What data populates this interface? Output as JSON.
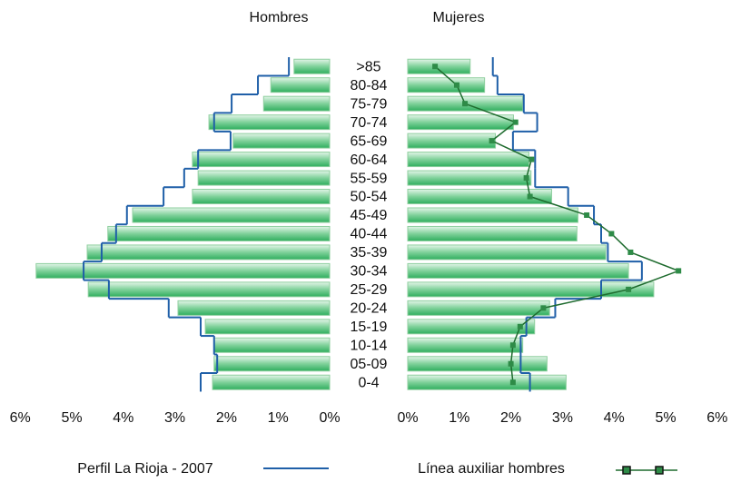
{
  "chart_data": {
    "type": "population_pyramid",
    "categories": [
      ">85",
      "80-84",
      "75-79",
      "70-74",
      "65-69",
      "60-64",
      "55-59",
      "50-54",
      "45-49",
      "40-44",
      "35-39",
      "30-34",
      "25-29",
      "20-24",
      "15-19",
      "10-14",
      "05-09",
      "0-4"
    ],
    "series": [
      {
        "name": "Hombres",
        "side": "left",
        "color": "#3cb371",
        "values": [
          0.69,
          1.14,
          1.28,
          2.34,
          1.87,
          2.66,
          2.55,
          2.66,
          3.82,
          4.3,
          4.7,
          5.69,
          4.68,
          2.94,
          2.41,
          2.24,
          2.24,
          2.27
        ]
      },
      {
        "name": "Mujeres",
        "side": "right",
        "color": "#3cb371",
        "values": [
          1.21,
          1.49,
          2.23,
          2.05,
          1.7,
          2.35,
          2.39,
          2.79,
          3.3,
          3.28,
          3.84,
          4.28,
          4.77,
          2.75,
          2.46,
          2.23,
          2.7,
          3.07
        ]
      }
    ],
    "profile": {
      "name": "Perfil La Rioja - 2007",
      "color": "#1f5fa8",
      "men": [
        0.79,
        1.39,
        1.9,
        2.24,
        1.92,
        2.55,
        2.82,
        3.22,
        3.93,
        4.14,
        4.42,
        4.77,
        4.28,
        3.12,
        2.5,
        2.24,
        2.18,
        2.5
      ],
      "women": [
        1.65,
        1.74,
        2.25,
        2.51,
        2.04,
        2.47,
        2.47,
        3.11,
        3.61,
        3.75,
        3.88,
        4.54,
        3.75,
        2.86,
        2.3,
        2.19,
        2.19,
        2.37
      ]
    },
    "aux": {
      "name": "Línea auxiliar hombres",
      "color": "#1e6b2e",
      "values": [
        0.53,
        0.95,
        1.11,
        2.09,
        1.63,
        2.4,
        2.3,
        2.37,
        3.47,
        3.95,
        4.32,
        5.25,
        4.28,
        2.63,
        2.18,
        2.04,
        2.0,
        2.04
      ]
    },
    "xlim": [
      0,
      6
    ],
    "xticks": [
      {
        "value": 0,
        "label": "0%"
      },
      {
        "value": 1,
        "label": "1%"
      },
      {
        "value": 2,
        "label": "2%"
      },
      {
        "value": 3,
        "label": "3%"
      },
      {
        "value": 4,
        "label": "4%"
      },
      {
        "value": 5,
        "label": "5%"
      },
      {
        "value": 6,
        "label": "6%"
      }
    ]
  }
}
